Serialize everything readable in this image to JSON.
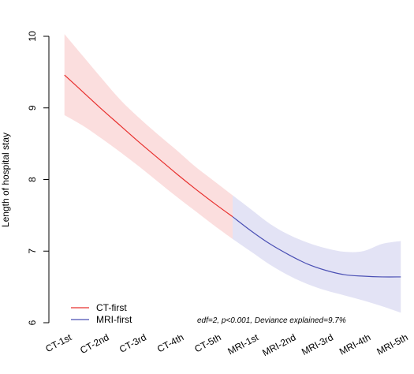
{
  "chart_data": {
    "type": "line",
    "title": "",
    "xlabel": "",
    "ylabel": "Length of hospital stay",
    "ylim": [
      6,
      10
    ],
    "yticks": [
      6,
      7,
      8,
      9,
      10
    ],
    "categories": [
      "CT-1st",
      "CT-2nd",
      "CT-3rd",
      "CT-4th",
      "CT-5th",
      "MRI-1st",
      "MRI-2nd",
      "MRI-3rd",
      "MRI-4th",
      "MRI-5th"
    ],
    "x": [
      0,
      1,
      2,
      3,
      4,
      5,
      6,
      7,
      8,
      9
    ],
    "xlim": [
      -0.1,
      9.1
    ],
    "grid": false,
    "legend_position": "bottom-left",
    "series": [
      {
        "name": "CT-first",
        "color": "#e8302e",
        "band_color": "#fbdede",
        "x": [
          0,
          0.5,
          1,
          1.5,
          2,
          2.5,
          3,
          3.5,
          4,
          4.5
        ],
        "y": [
          9.46,
          9.22,
          8.98,
          8.75,
          8.52,
          8.3,
          8.08,
          7.87,
          7.67,
          7.48
        ],
        "lower": [
          8.9,
          8.75,
          8.57,
          8.38,
          8.18,
          7.97,
          7.76,
          7.56,
          7.36,
          7.17
        ],
        "upper": [
          10.03,
          9.72,
          9.41,
          9.11,
          8.86,
          8.63,
          8.41,
          8.18,
          7.98,
          7.78
        ]
      },
      {
        "name": "MRI-first",
        "color": "#4a4fb4",
        "band_color": "#e3e3f5",
        "x": [
          4.5,
          5,
          5.5,
          6,
          6.5,
          7,
          7.5,
          8,
          8.5,
          9
        ],
        "y": [
          7.48,
          7.28,
          7.1,
          6.95,
          6.82,
          6.73,
          6.67,
          6.65,
          6.64,
          6.64
        ],
        "lower": [
          7.17,
          6.99,
          6.81,
          6.66,
          6.54,
          6.45,
          6.38,
          6.31,
          6.23,
          6.14
        ],
        "upper": [
          7.78,
          7.58,
          7.38,
          7.23,
          7.12,
          7.04,
          6.99,
          7.0,
          7.1,
          7.14
        ]
      }
    ],
    "annotation": "edf=2, p<0.001, Deviance explained=9.7%"
  }
}
